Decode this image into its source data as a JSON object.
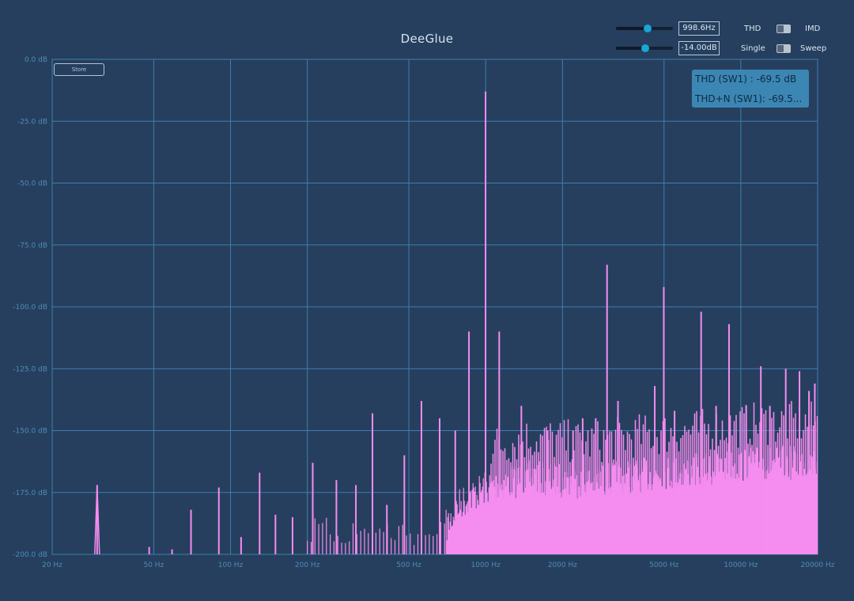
{
  "app": {
    "title": "DeeGlue"
  },
  "controls": {
    "frequency": {
      "value": "998.6Hz",
      "level": 0.55
    },
    "amplitude": {
      "value": "-14.00dB",
      "level": 0.52
    },
    "mode_toggle": {
      "left_label": "THD",
      "right_label": "IMD",
      "state": "left"
    },
    "sweep_toggle": {
      "left_label": "Single",
      "right_label": "Sweep",
      "state": "left"
    },
    "store_label": "Store"
  },
  "readout": {
    "thd": "THD (SW1) : -69.5 dB",
    "thdn": "THD+N (SW1): -69.5..."
  },
  "colors": {
    "background": "#263f5e",
    "grid": "#3f7fae",
    "spectrum": "#f58cf0"
  },
  "chart_data": {
    "type": "bar",
    "x_scale": "log",
    "xlim": [
      20,
      20000
    ],
    "ylim": [
      -200,
      0
    ],
    "grid": true,
    "x_ticks": [
      {
        "v": 20,
        "label": "20 Hz"
      },
      {
        "v": 50,
        "label": "50 Hz"
      },
      {
        "v": 100,
        "label": "100 Hz"
      },
      {
        "v": 200,
        "label": "200 Hz"
      },
      {
        "v": 500,
        "label": "500 Hz"
      },
      {
        "v": 1000,
        "label": "1000 Hz"
      },
      {
        "v": 2000,
        "label": "2000 Hz"
      },
      {
        "v": 5000,
        "label": "5000 Hz"
      },
      {
        "v": 10000,
        "label": "10000 Hz"
      },
      {
        "v": 20000,
        "label": "20000 Hz"
      }
    ],
    "y_ticks": [
      {
        "v": 0,
        "label": "0.0 dB"
      },
      {
        "v": -25,
        "label": "-25.0 dB"
      },
      {
        "v": -50,
        "label": "-50.0 dB"
      },
      {
        "v": -75,
        "label": "-75.0 dB"
      },
      {
        "v": -100,
        "label": "-100.0 dB"
      },
      {
        "v": -125,
        "label": "-125.0 dB"
      },
      {
        "v": -150,
        "label": "-150.0 dB"
      },
      {
        "v": -175,
        "label": "-175.0 dB"
      },
      {
        "v": -200,
        "label": "-200.0 dB"
      }
    ],
    "peaks": [
      {
        "f": 30,
        "db": -172
      },
      {
        "f": 48,
        "db": -197
      },
      {
        "f": 59,
        "db": -198
      },
      {
        "f": 70,
        "db": -182
      },
      {
        "f": 90,
        "db": -173
      },
      {
        "f": 110,
        "db": -193
      },
      {
        "f": 130,
        "db": -167
      },
      {
        "f": 150,
        "db": -184
      },
      {
        "f": 175,
        "db": -185
      },
      {
        "f": 210,
        "db": -163
      },
      {
        "f": 260,
        "db": -170
      },
      {
        "f": 310,
        "db": -172
      },
      {
        "f": 360,
        "db": -143
      },
      {
        "f": 410,
        "db": -180
      },
      {
        "f": 480,
        "db": -160
      },
      {
        "f": 560,
        "db": -138
      },
      {
        "f": 660,
        "db": -145
      },
      {
        "f": 760,
        "db": -150
      },
      {
        "f": 860,
        "db": -110
      },
      {
        "f": 999,
        "db": -13
      },
      {
        "f": 1130,
        "db": -110
      },
      {
        "f": 1380,
        "db": -140
      },
      {
        "f": 1750,
        "db": -150
      },
      {
        "f": 2200,
        "db": -150
      },
      {
        "f": 2400,
        "db": -145
      },
      {
        "f": 2700,
        "db": -145
      },
      {
        "f": 2990,
        "db": -83
      },
      {
        "f": 3300,
        "db": -138
      },
      {
        "f": 4600,
        "db": -132
      },
      {
        "f": 4990,
        "db": -92
      },
      {
        "f": 5500,
        "db": -142
      },
      {
        "f": 6990,
        "db": -102
      },
      {
        "f": 8000,
        "db": -140
      },
      {
        "f": 8990,
        "db": -107
      },
      {
        "f": 10500,
        "db": -140
      },
      {
        "f": 11980,
        "db": -124
      },
      {
        "f": 13000,
        "db": -140
      },
      {
        "f": 15000,
        "db": -125
      },
      {
        "f": 16980,
        "db": -126
      },
      {
        "f": 18500,
        "db": -134
      },
      {
        "f": 19500,
        "db": -131
      }
    ],
    "noise": [
      {
        "f": 700,
        "db": -188
      },
      {
        "f": 800,
        "db": -178
      },
      {
        "f": 1000,
        "db": -172
      },
      {
        "f": 1500,
        "db": -168
      },
      {
        "f": 2500,
        "db": -170
      },
      {
        "f": 4000,
        "db": -167
      },
      {
        "f": 7000,
        "db": -165
      },
      {
        "f": 12000,
        "db": -162
      },
      {
        "f": 20000,
        "db": -162
      }
    ]
  }
}
